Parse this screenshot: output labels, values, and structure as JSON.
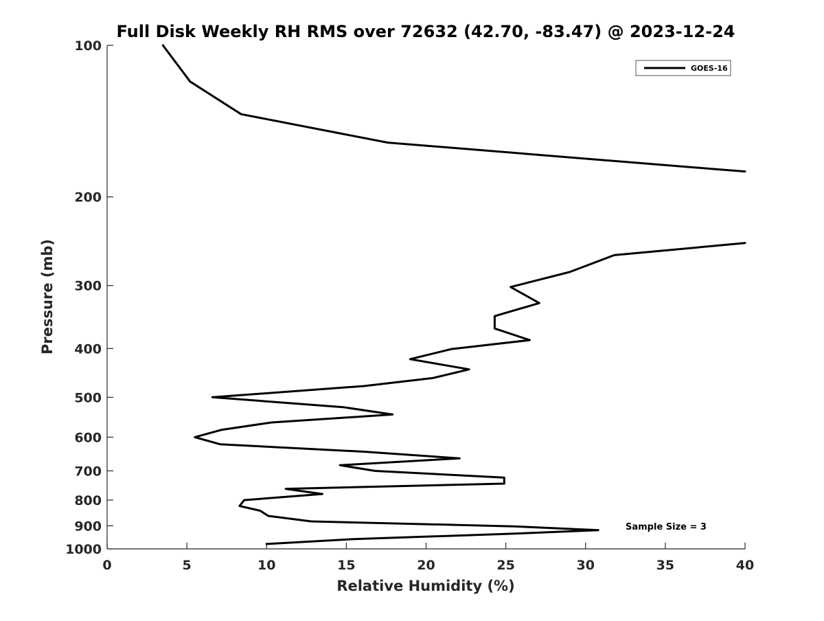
{
  "chart_data": {
    "type": "line",
    "title": "Full Disk Weekly RH RMS over 72632 (42.70, -83.47) @ 2023-12-24",
    "xlabel": "Relative Humidity (%)",
    "ylabel": "Pressure (mb)",
    "xlim": [
      0,
      40
    ],
    "ylim": [
      1000,
      100
    ],
    "y_scale": "log",
    "y_inverted": true,
    "grid": false,
    "legend_position": "top-right",
    "xticks": [
      0,
      5,
      10,
      15,
      20,
      25,
      30,
      35,
      40
    ],
    "yticks": [
      100,
      200,
      300,
      400,
      500,
      600,
      700,
      800,
      900,
      1000
    ],
    "series": [
      {
        "name": "GOES-16",
        "color": "#000000",
        "points": [
          [
            3.5,
            100
          ],
          [
            5.2,
            118
          ],
          [
            8.4,
            137
          ],
          [
            17.6,
            156
          ],
          [
            38.0,
            176
          ],
          [
            40.0,
            178
          ]
        ]
      },
      {
        "name": "GOES-16",
        "color": "#000000",
        "points": [
          [
            40.0,
            247
          ],
          [
            31.8,
            261
          ],
          [
            29.0,
            282
          ],
          [
            25.3,
            302
          ],
          [
            27.1,
            325
          ],
          [
            24.3,
            345
          ],
          [
            24.3,
            365
          ],
          [
            26.5,
            385
          ],
          [
            21.6,
            401
          ],
          [
            19.0,
            420
          ],
          [
            22.7,
            440
          ],
          [
            20.4,
            458
          ],
          [
            16.1,
            475
          ],
          [
            6.6,
            500
          ],
          [
            14.8,
            523
          ],
          [
            17.9,
            541
          ],
          [
            10.3,
            561
          ],
          [
            7.2,
            580
          ],
          [
            5.5,
            600
          ],
          [
            7.1,
            620
          ],
          [
            16.0,
            641
          ],
          [
            22.1,
            661
          ],
          [
            14.6,
            682
          ],
          [
            16.8,
            700
          ],
          [
            24.9,
            722
          ],
          [
            24.9,
            742
          ],
          [
            11.2,
            760
          ],
          [
            13.5,
            778
          ],
          [
            8.6,
            800
          ],
          [
            8.3,
            822
          ],
          [
            9.6,
            840
          ],
          [
            10.1,
            860
          ],
          [
            12.8,
            882
          ],
          [
            25.5,
            902
          ],
          [
            30.8,
            918
          ],
          [
            25.0,
            934
          ],
          [
            15.5,
            956
          ],
          [
            10.0,
            978
          ]
        ]
      }
    ],
    "legend": [
      "GOES-16"
    ],
    "annotations": [
      "Sample Size = 3"
    ]
  }
}
